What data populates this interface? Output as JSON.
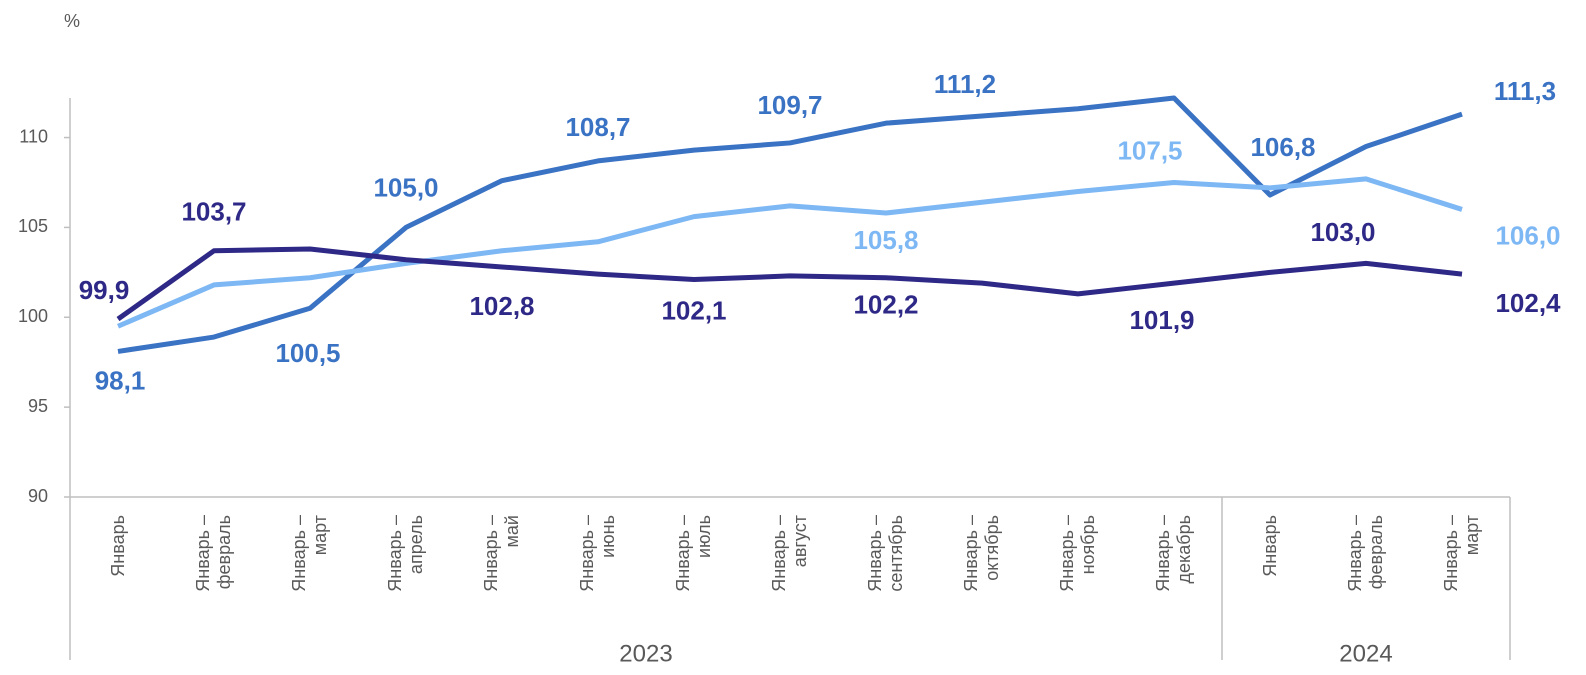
{
  "chart_data": {
    "type": "line",
    "y_unit_label": "%",
    "categories": [
      "Январь",
      "Январь – февраль",
      "Январь – март",
      "Январь – апрель",
      "Январь – май",
      "Январь – июнь",
      "Январь – июль",
      "Январь – август",
      "Январь – сентябрь",
      "Январь – октябрь",
      "Январь – ноябрь",
      "Январь – декабрь",
      "Январь",
      "Январь – февраль",
      "Январь – март"
    ],
    "groups": [
      {
        "label": "2023",
        "span": 12
      },
      {
        "label": "2024",
        "span": 3
      }
    ],
    "series": [
      {
        "color": "#3A72C4",
        "values": [
          98.1,
          98.9,
          100.5,
          105.0,
          107.6,
          108.7,
          109.3,
          109.7,
          110.8,
          111.2,
          111.6,
          112.2,
          106.8,
          109.5,
          111.3
        ],
        "value_labels": [
          "98,1",
          null,
          "100,5",
          "105,0",
          null,
          "108,7",
          null,
          "109,7",
          null,
          "111,2",
          null,
          null,
          "106,8",
          null,
          "111,3"
        ]
      },
      {
        "color": "#7DB7F4",
        "values": [
          99.5,
          101.8,
          102.2,
          103.0,
          103.7,
          104.2,
          105.6,
          106.2,
          105.8,
          106.4,
          107.0,
          107.5,
          107.2,
          107.7,
          106.0
        ],
        "value_labels": [
          null,
          null,
          null,
          null,
          null,
          null,
          null,
          null,
          "105,8",
          null,
          null,
          "107,5",
          null,
          null,
          "106,0"
        ]
      },
      {
        "color": "#2E2886",
        "values": [
          99.9,
          103.7,
          103.8,
          103.2,
          102.8,
          102.4,
          102.1,
          102.3,
          102.2,
          101.9,
          101.3,
          101.9,
          102.5,
          103.0,
          102.4
        ],
        "value_labels": [
          "99,9",
          "103,7",
          null,
          null,
          "102,8",
          null,
          "102,1",
          null,
          "102,2",
          null,
          null,
          "101,9",
          null,
          "103,0",
          "102,4"
        ]
      }
    ],
    "ylim": [
      90,
      112.2
    ],
    "yticks": [
      90,
      95,
      100,
      105,
      110
    ],
    "grid": false
  }
}
